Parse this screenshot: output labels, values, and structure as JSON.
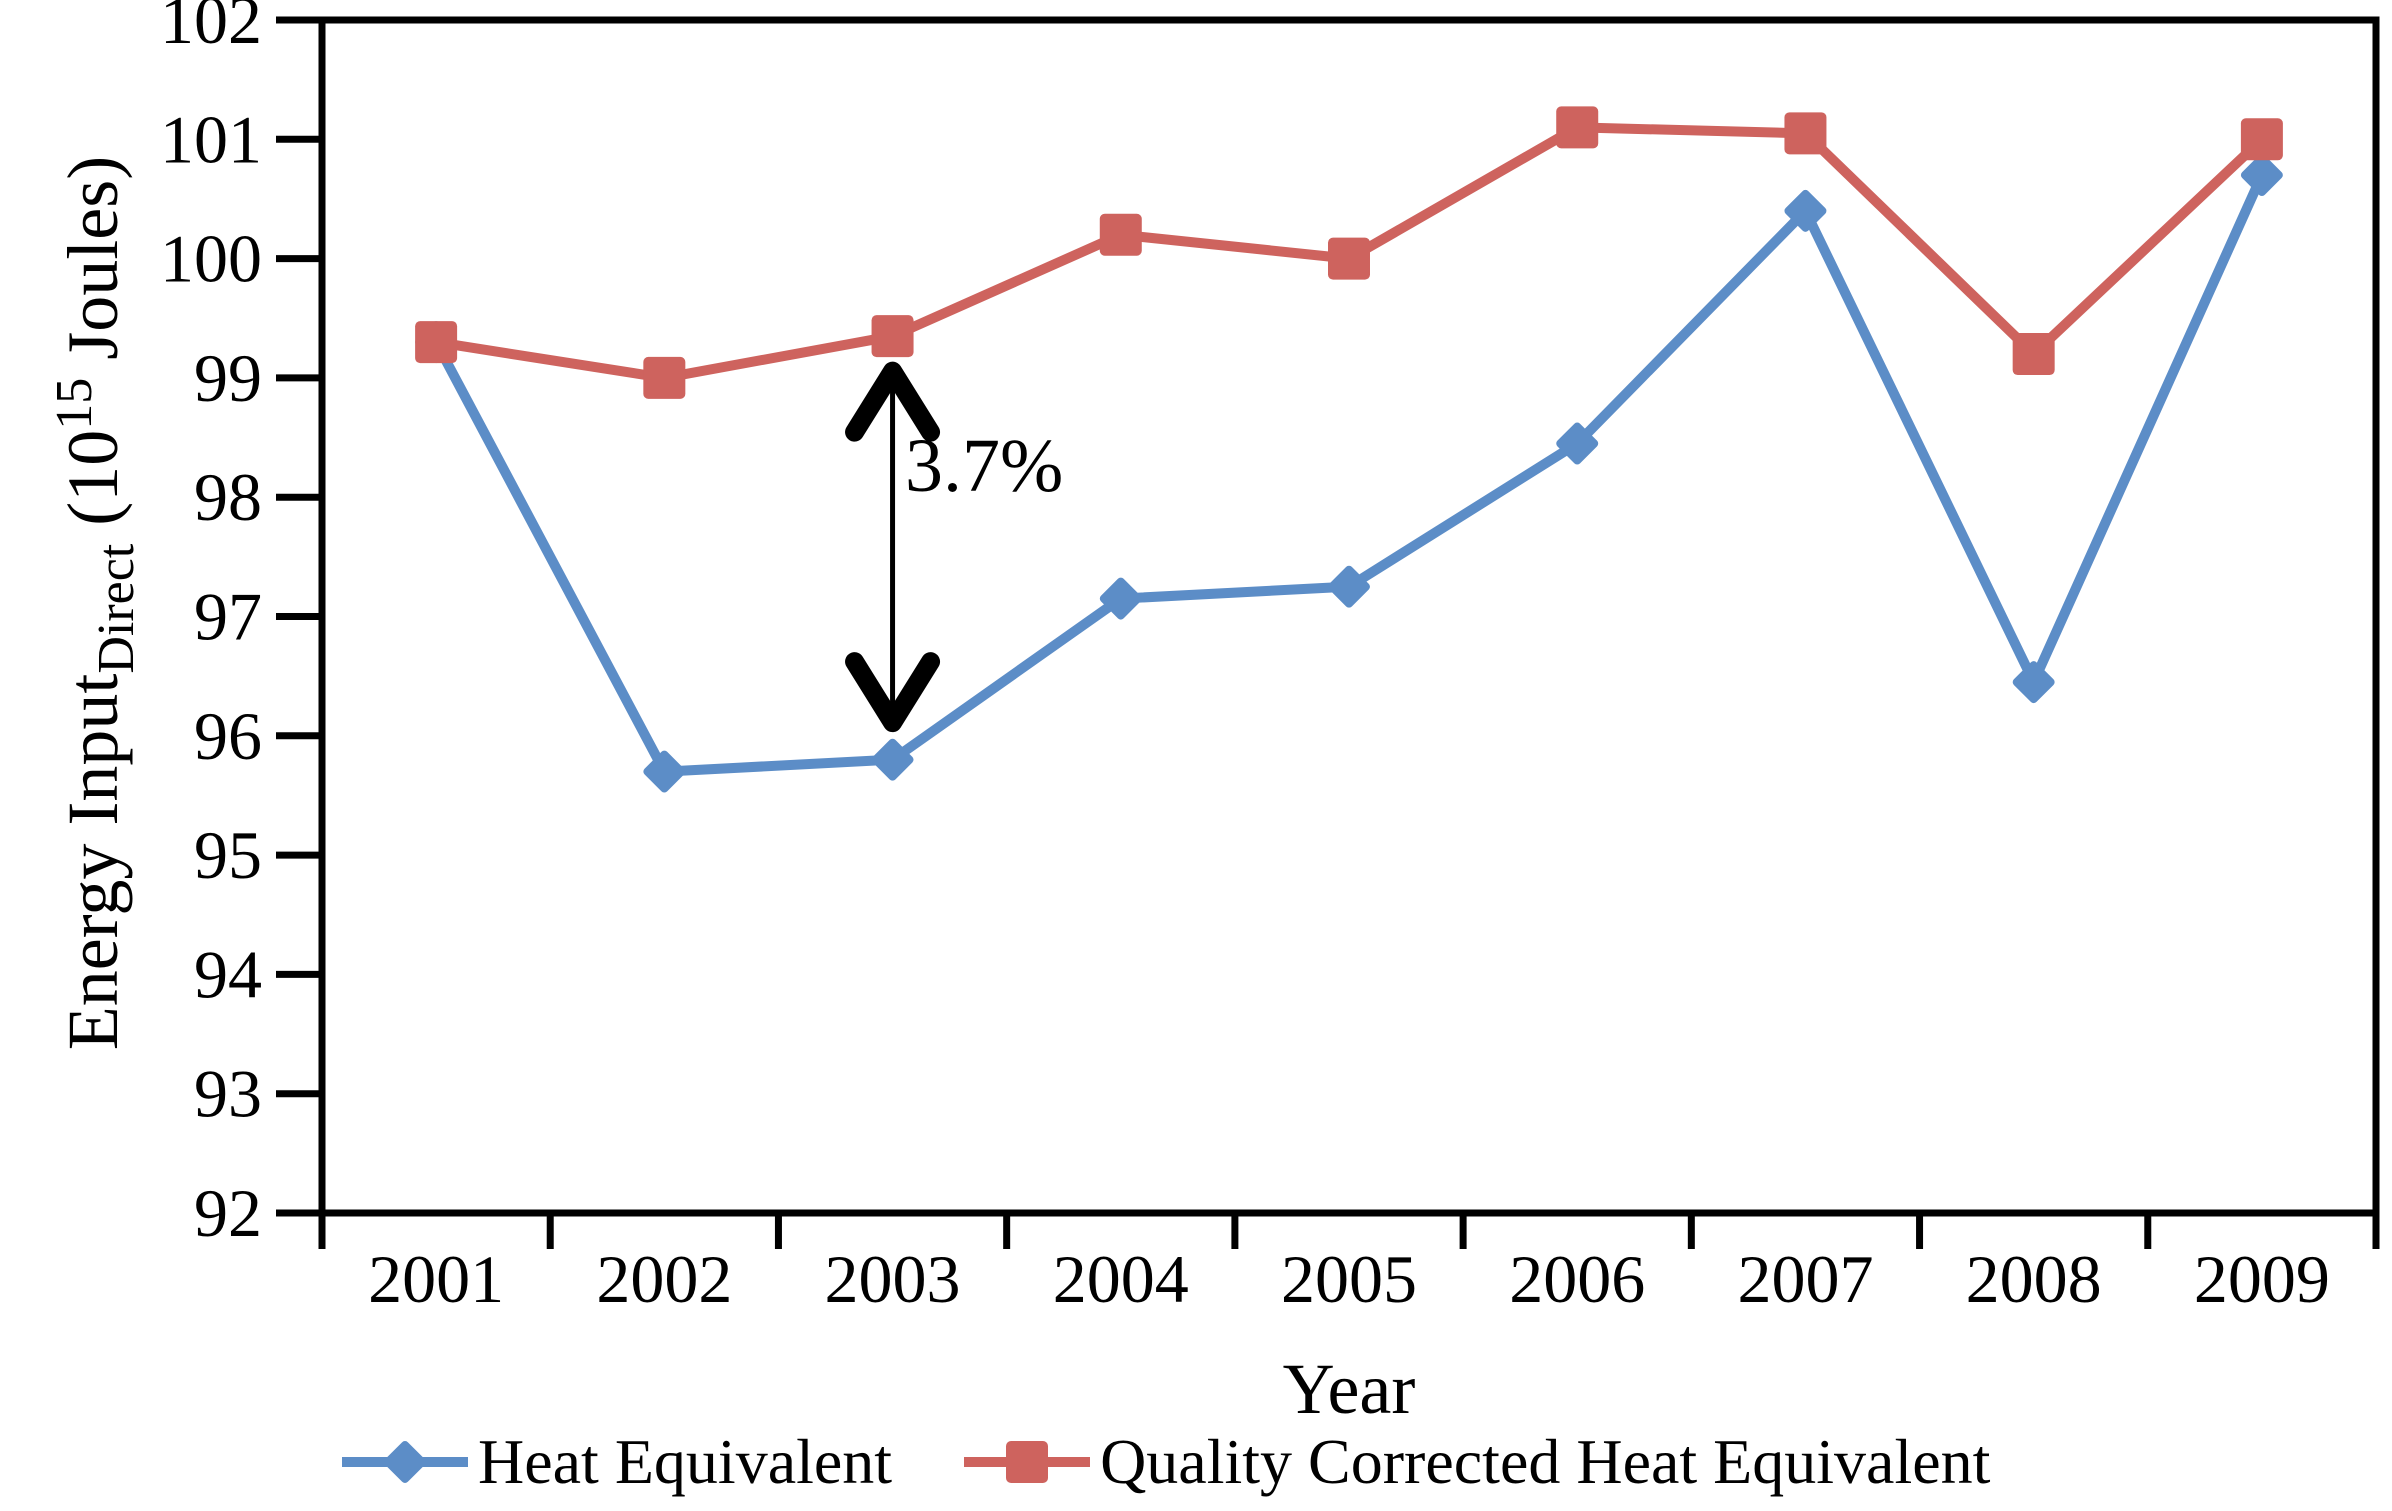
{
  "figure": {
    "background": "#ffffff",
    "axis_color": "#000000"
  },
  "chart_data": {
    "type": "line",
    "x": [
      2001,
      2002,
      2003,
      2004,
      2005,
      2006,
      2007,
      2008,
      2009
    ],
    "xlabel": "Year",
    "ylabel_text": "Energy Input_Direct (10^15 Joules)",
    "ylabel_parts": {
      "main": "Energy Input",
      "sub": "Direct",
      "mid": " (10",
      "sup": "15",
      "end": " Joules)"
    },
    "ylim": [
      92,
      102
    ],
    "yticks": [
      92,
      93,
      94,
      95,
      96,
      97,
      98,
      99,
      100,
      101,
      102
    ],
    "grid": "off",
    "legend_position": "bottom",
    "series": [
      {
        "name": "Heat Equivalent",
        "marker": "diamond",
        "color": "#5C8DC7",
        "values": [
          99.3,
          95.7,
          95.8,
          97.15,
          97.25,
          98.45,
          100.4,
          96.45,
          100.7
        ]
      },
      {
        "name": "Quality Corrected Heat Equivalent",
        "marker": "square",
        "color": "#CE635E",
        "values": [
          99.3,
          99.0,
          99.35,
          100.2,
          100.0,
          101.1,
          101.05,
          99.2,
          101.0
        ]
      }
    ],
    "annotation": {
      "label": "3.7%",
      "x": 2003,
      "from_series": 1,
      "to_series": 0
    }
  }
}
